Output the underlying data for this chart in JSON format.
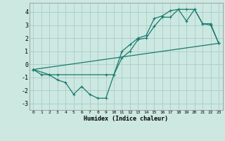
{
  "xlabel": "Humidex (Indice chaleur)",
  "bg_color": "#cce8e0",
  "grid_color": "#aacccc",
  "line_color": "#1a7a6e",
  "xlim": [
    -0.5,
    23.5
  ],
  "ylim": [
    -3.5,
    4.7
  ],
  "xticks": [
    0,
    1,
    2,
    3,
    4,
    5,
    6,
    7,
    8,
    9,
    10,
    11,
    12,
    13,
    14,
    15,
    16,
    17,
    18,
    19,
    20,
    21,
    22,
    23
  ],
  "yticks": [
    -3,
    -2,
    -1,
    0,
    1,
    2,
    3,
    4
  ],
  "line1_x": [
    0,
    1,
    2,
    3,
    4,
    5,
    6,
    7,
    8,
    9,
    10,
    11,
    12,
    13,
    14,
    15,
    16,
    17,
    18,
    19,
    20,
    21,
    22,
    23
  ],
  "line1_y": [
    -0.4,
    -0.8,
    -0.8,
    -1.2,
    -1.4,
    -2.3,
    -1.7,
    -2.3,
    -2.6,
    -2.6,
    -0.8,
    0.5,
    1.0,
    1.9,
    2.0,
    2.9,
    3.6,
    3.6,
    4.2,
    4.2,
    4.2,
    3.1,
    3.1,
    1.6
  ],
  "line2_x": [
    0,
    2,
    3,
    9,
    10,
    11,
    12,
    13,
    14,
    15,
    16,
    17,
    18,
    19,
    20,
    21,
    22,
    23
  ],
  "line2_y": [
    -0.4,
    -0.8,
    -0.8,
    -0.8,
    -0.8,
    1.0,
    1.5,
    2.0,
    2.2,
    3.5,
    3.7,
    4.1,
    4.2,
    3.3,
    4.2,
    3.1,
    3.0,
    1.6
  ],
  "line3_x": [
    0,
    23
  ],
  "line3_y": [
    -0.4,
    1.6
  ],
  "marker_size": 3.5,
  "linewidth": 0.9
}
